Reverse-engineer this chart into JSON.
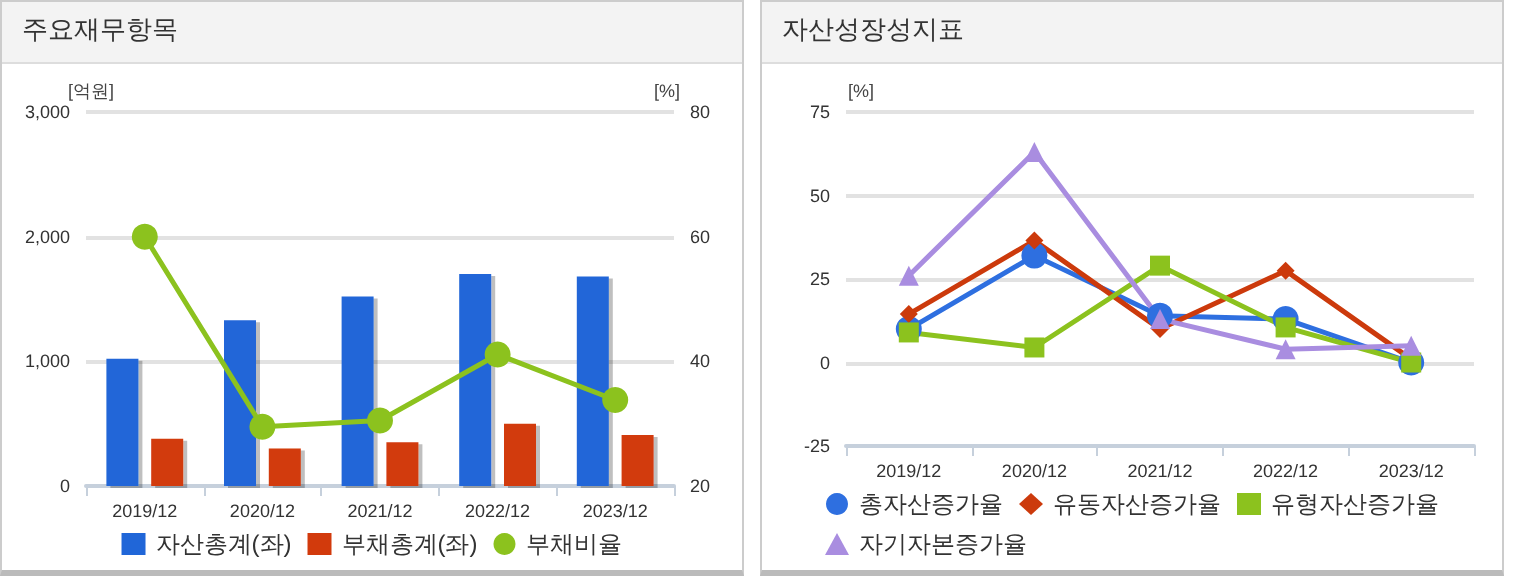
{
  "chart_data": [
    {
      "type": "bar",
      "title": "주요재무항목",
      "ylabel": "[억원]",
      "y2label": "[%]",
      "categories": [
        "2019/12",
        "2020/12",
        "2021/12",
        "2022/12",
        "2023/12"
      ],
      "series": [
        {
          "name": "자산총계(좌)",
          "color": "#2066d8",
          "values": [
            1020,
            1330,
            1520,
            1700,
            1680
          ]
        },
        {
          "name": "부채총계(좌)",
          "color": "#d23a0c",
          "values": [
            380,
            300,
            350,
            500,
            410
          ]
        },
        {
          "name": "부채비율",
          "type": "line",
          "axis": "y2",
          "color": "#8cc21e",
          "marker": "circle",
          "values": [
            60,
            29.5,
            30.5,
            41.1,
            33.8
          ]
        }
      ],
      "ylim": [
        0,
        3000
      ],
      "yticks": [
        {
          "value": 0,
          "label": "0"
        },
        {
          "value": 1000,
          "label": "1,000"
        },
        {
          "value": 2000,
          "label": "2,000"
        },
        {
          "value": 3000,
          "label": "3,000"
        }
      ],
      "y2lim": [
        20,
        80
      ],
      "y2ticks": [
        20,
        40,
        60,
        80
      ],
      "grid": "y",
      "legend": "bottom"
    },
    {
      "type": "line",
      "title": "자산성장성지표",
      "ylabel": "[%]",
      "categories": [
        "2019/12",
        "2020/12",
        "2021/12",
        "2022/12",
        "2023/12"
      ],
      "series": [
        {
          "name": "총자산증가율",
          "color": "#2e6fe0",
          "marker": "circle",
          "values": [
            10,
            32,
            14,
            13,
            0
          ]
        },
        {
          "name": "유동자산증가율",
          "color": "#cc3a0c",
          "marker": "diamond",
          "values": [
            14.5,
            36.5,
            10,
            27.5,
            1
          ]
        },
        {
          "name": "유형자산증가율",
          "color": "#8cc21e",
          "marker": "square",
          "values": [
            9,
            4.5,
            29,
            10.5,
            0
          ]
        },
        {
          "name": "자기자본증가율",
          "color": "#a98de0",
          "marker": "triangle",
          "values": [
            26,
            63,
            13,
            4,
            5
          ]
        }
      ],
      "ylim": [
        -25,
        75
      ],
      "yticks": [
        -25,
        0,
        25,
        50,
        75
      ],
      "grid": "y",
      "legend": "bottom"
    }
  ]
}
